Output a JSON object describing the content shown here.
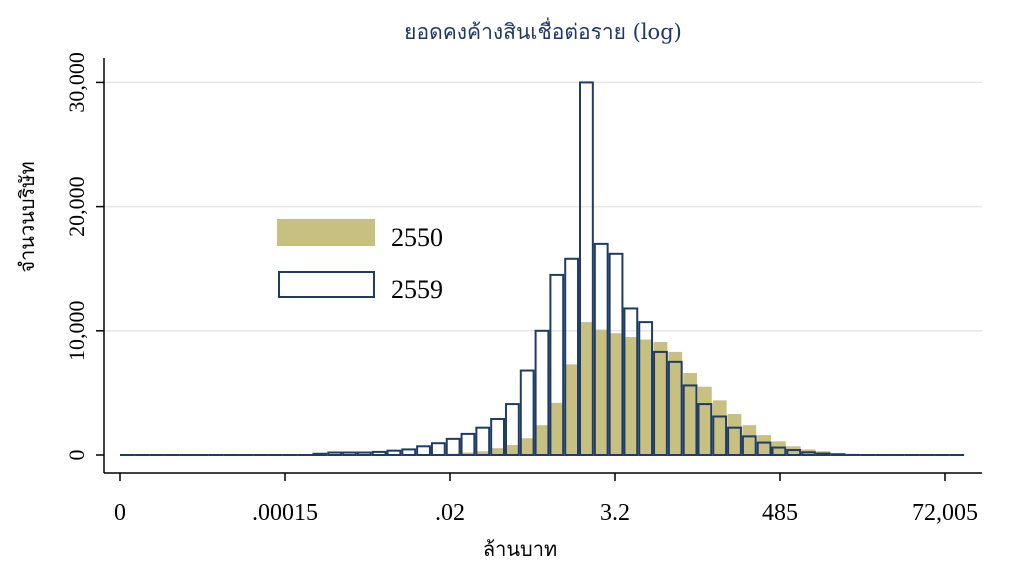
{
  "chart_data": {
    "type": "bar",
    "title": "ยอดคงค้างสินเชื่อต่อราย (log)",
    "xlabel": "ล้านบาท",
    "ylabel": "จำนวนบริษัท",
    "xticks": [
      "0",
      ".00015",
      ".02",
      "3.2",
      "485",
      "72,005"
    ],
    "yticks": [
      {
        "value": 0,
        "label": "0"
      },
      {
        "value": 10000,
        "label": "10,000"
      },
      {
        "value": 20000,
        "label": "20,000"
      },
      {
        "value": 30000,
        "label": "30,000"
      }
    ],
    "ylim": [
      0,
      31000
    ],
    "grid": true,
    "legend_position": "left",
    "bins": 57,
    "series": [
      {
        "name": "2550",
        "style": "filled",
        "color": "#c8c080",
        "values": [
          0,
          0,
          0,
          0,
          0,
          0,
          0,
          0,
          0,
          0,
          0,
          0,
          0,
          0,
          0,
          0,
          0,
          0,
          0,
          0,
          0,
          0,
          100,
          200,
          300,
          550,
          800,
          1350,
          2400,
          4200,
          7300,
          10700,
          10100,
          9800,
          9500,
          9300,
          9100,
          8300,
          6600,
          5500,
          4400,
          3300,
          2400,
          1600,
          1100,
          700,
          450,
          300,
          150,
          100,
          60,
          30,
          20,
          10,
          0,
          0,
          0
        ]
      },
      {
        "name": "2559",
        "style": "outline",
        "color": "#1f3c64",
        "values": [
          0,
          0,
          0,
          0,
          0,
          0,
          0,
          0,
          0,
          0,
          0,
          0,
          0,
          100,
          200,
          200,
          200,
          250,
          350,
          450,
          700,
          950,
          1300,
          1700,
          2200,
          2900,
          4100,
          6800,
          10000,
          14500,
          15800,
          30000,
          17000,
          16200,
          11800,
          10700,
          8300,
          7500,
          5600,
          4100,
          3100,
          2200,
          1500,
          1000,
          600,
          400,
          220,
          120,
          60,
          0,
          0,
          0,
          0,
          0,
          0,
          0,
          0
        ]
      }
    ]
  }
}
